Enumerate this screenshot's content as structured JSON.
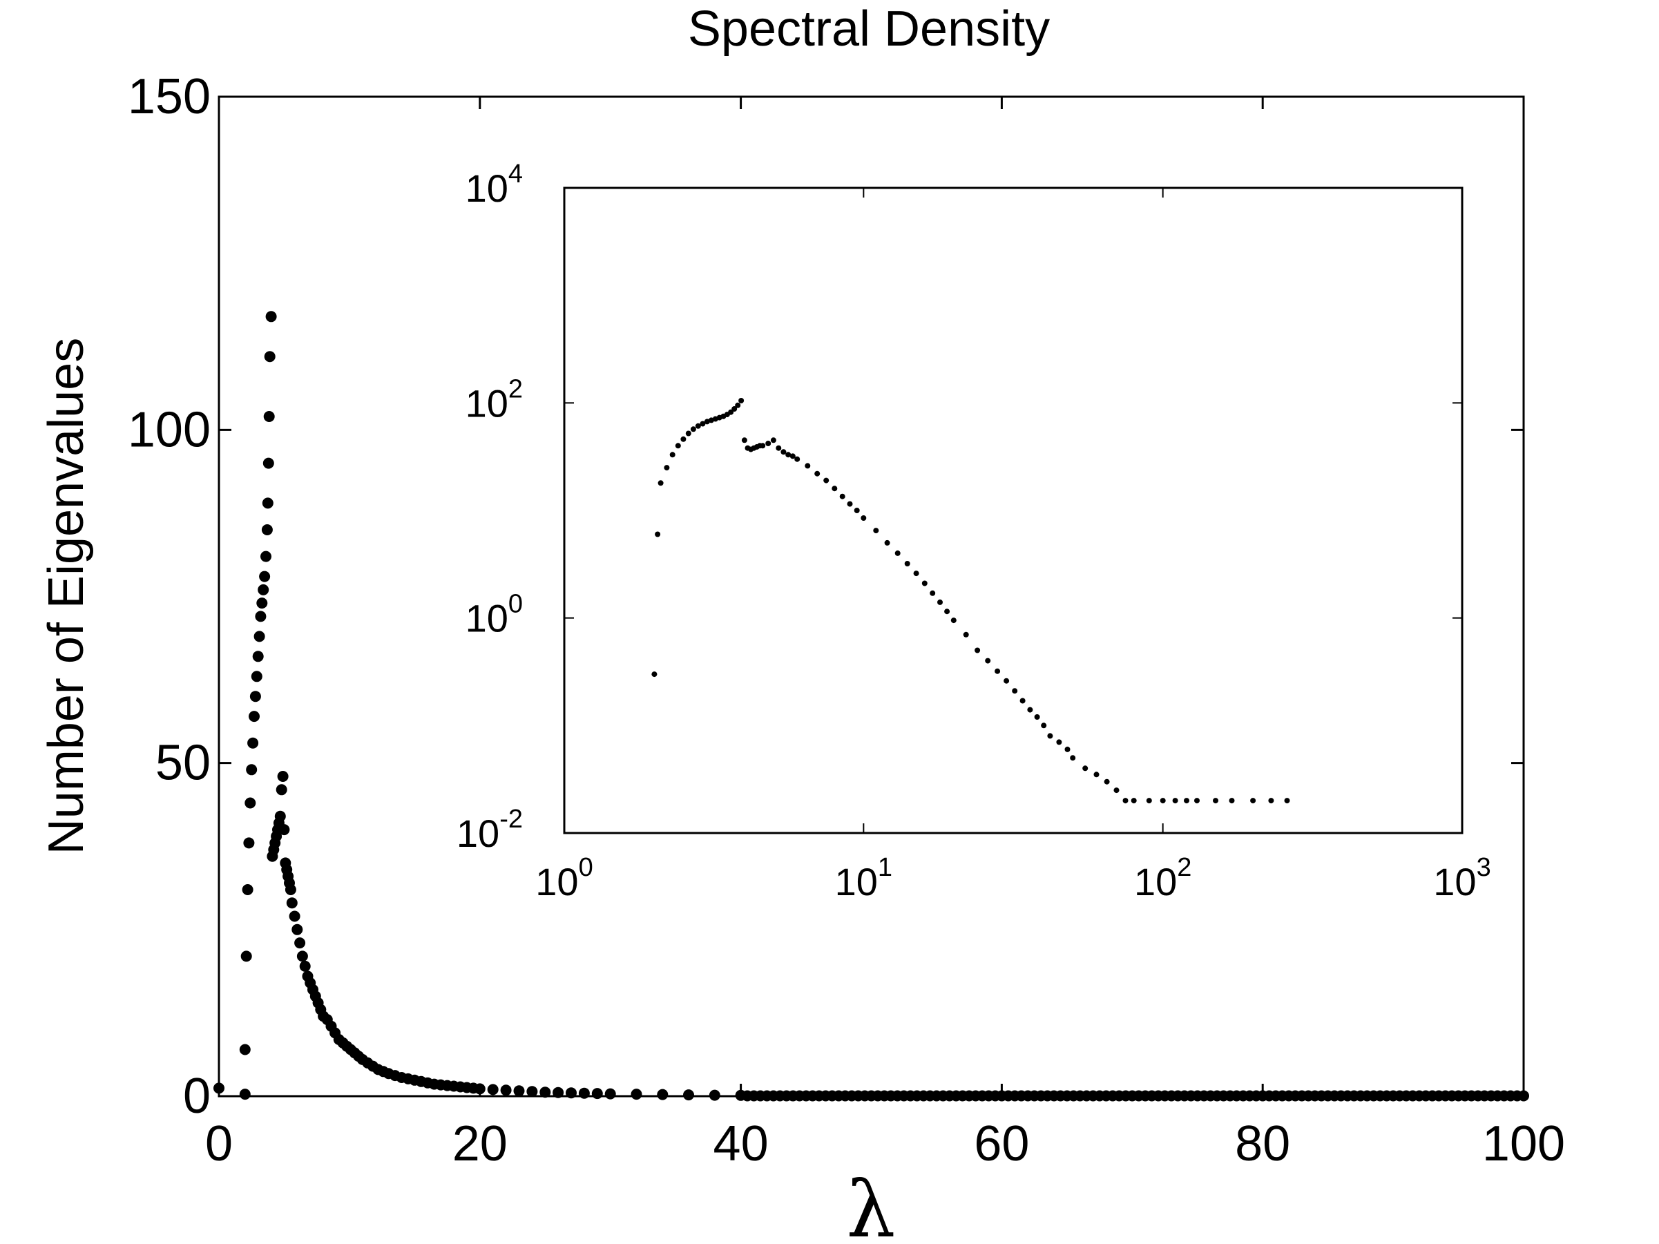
{
  "chart_data": [
    {
      "type": "scatter",
      "title": "Spectral Density",
      "xlabel": "λ",
      "ylabel": "Number of Eigenvalues",
      "xlim": [
        0,
        100
      ],
      "ylim": [
        0,
        150
      ],
      "x_ticks": [
        "0",
        "20",
        "40",
        "60",
        "80",
        "100"
      ],
      "y_ticks": [
        "0",
        "50",
        "100",
        "150"
      ],
      "grid": false,
      "marker_color": "#000000",
      "series": [
        {
          "x": [
            0,
            2,
            2,
            2.1,
            2.2,
            2.3,
            2.4,
            2.5,
            2.6,
            2.7,
            2.8,
            2.9,
            3.0,
            3.1,
            3.2,
            3.3,
            3.4,
            3.5,
            3.6,
            3.7,
            3.75,
            3.8,
            3.85,
            3.9,
            4.0,
            4.1,
            4.2,
            4.3,
            4.4,
            4.5,
            4.6,
            4.7,
            4.8,
            4.9,
            5.0,
            5.1,
            5.2,
            5.3,
            5.4,
            5.5,
            5.6,
            5.8,
            6.0,
            6.2,
            6.4,
            6.6,
            6.8,
            7.0,
            7.2,
            7.4,
            7.6,
            7.8,
            8.0,
            8.3,
            8.6,
            8.9,
            9.2,
            9.5,
            9.8,
            10.1,
            10.4,
            10.7,
            11.0,
            11.4,
            11.8,
            12.2,
            12.6,
            13.0,
            13.5,
            14.0,
            14.5,
            15.0,
            15.5,
            16.0,
            16.5,
            17.0,
            17.5,
            18.0,
            18.5,
            19.0,
            19.5,
            20.0,
            21.0,
            22.0,
            23.0,
            24.0,
            25.0,
            26.0,
            27.0,
            28.0,
            29.0,
            30.0,
            32.0,
            34.0,
            36.0,
            38.0,
            40.0
          ],
          "y": [
            1.2,
            0.3,
            7,
            21,
            31,
            38,
            44,
            49,
            53,
            57,
            60,
            63,
            66,
            69,
            72,
            74,
            76,
            78,
            81,
            85,
            89,
            95,
            102,
            111,
            117,
            36,
            37,
            38,
            39,
            40,
            41,
            42,
            46,
            48,
            40,
            35,
            34,
            33,
            32,
            31,
            29,
            27,
            25,
            23,
            21,
            19.5,
            18,
            17,
            16,
            15,
            14,
            13,
            12,
            11.5,
            10.5,
            9.5,
            8.5,
            8,
            7.5,
            7,
            6.5,
            6,
            5.5,
            5,
            4.5,
            4,
            3.7,
            3.4,
            3.1,
            2.8,
            2.6,
            2.4,
            2.2,
            2.0,
            1.8,
            1.7,
            1.6,
            1.5,
            1.4,
            1.3,
            1.2,
            1.1,
            1.0,
            0.9,
            0.8,
            0.7,
            0.6,
            0.55,
            0.5,
            0.45,
            0.4,
            0.35,
            0.3,
            0.25,
            0.2,
            0.15,
            0.12
          ]
        }
      ]
    },
    {
      "type": "scatter",
      "title": "",
      "xscale": "log",
      "yscale": "log",
      "xlim": [
        1,
        1000
      ],
      "ylim": [
        0.01,
        10000
      ],
      "x_ticks": [
        {
          "base": "10",
          "exp": "0"
        },
        {
          "base": "10",
          "exp": "1"
        },
        {
          "base": "10",
          "exp": "2"
        },
        {
          "base": "10",
          "exp": "3"
        }
      ],
      "y_ticks": [
        {
          "base": "10",
          "exp": "-2"
        },
        {
          "base": "10",
          "exp": "0"
        },
        {
          "base": "10",
          "exp": "2"
        },
        {
          "base": "10",
          "exp": "4"
        }
      ],
      "grid": false,
      "marker_color": "#000000",
      "series": [
        {
          "x": [
            2.0,
            2.05,
            2.1,
            2.2,
            2.3,
            2.4,
            2.5,
            2.6,
            2.7,
            2.8,
            2.9,
            3.0,
            3.1,
            3.2,
            3.3,
            3.4,
            3.5,
            3.6,
            3.7,
            3.8,
            3.9,
            4.0,
            4.1,
            4.2,
            4.3,
            4.4,
            4.5,
            4.6,
            4.8,
            5.0,
            5.2,
            5.4,
            5.6,
            5.8,
            6.0,
            6.5,
            7.0,
            7.5,
            8.0,
            8.5,
            9.0,
            9.5,
            10,
            11,
            12,
            13,
            14,
            15,
            16,
            17,
            18,
            19,
            20,
            22,
            24,
            26,
            28,
            30,
            32,
            34,
            36,
            38,
            40,
            42,
            45,
            48,
            50,
            55,
            60,
            65,
            70,
            75,
            80,
            90,
            100,
            110,
            120,
            130,
            150,
            170,
            200,
            230,
            260
          ],
          "y": [
            0.3,
            6,
            18,
            25,
            33,
            40,
            46,
            52,
            57,
            61,
            64,
            67,
            69,
            71,
            73,
            75,
            78,
            82,
            88,
            95,
            105,
            45,
            38,
            37,
            38,
            39,
            40,
            40,
            42,
            45,
            38,
            35,
            33,
            32,
            30,
            26,
            22,
            19,
            16,
            13.5,
            11.5,
            10,
            8.5,
            6.5,
            5,
            4,
            3.2,
            2.6,
            2.1,
            1.7,
            1.4,
            1.15,
            0.95,
            0.7,
            0.5,
            0.4,
            0.32,
            0.26,
            0.21,
            0.17,
            0.14,
            0.12,
            0.1,
            0.08,
            0.07,
            0.06,
            0.05,
            0.04,
            0.035,
            0.03,
            0.025,
            0.02,
            0.02,
            0.02,
            0.02,
            0.02,
            0.02,
            0.02,
            0.02,
            0.02,
            0.02,
            0.02,
            0.02
          ]
        }
      ]
    }
  ]
}
